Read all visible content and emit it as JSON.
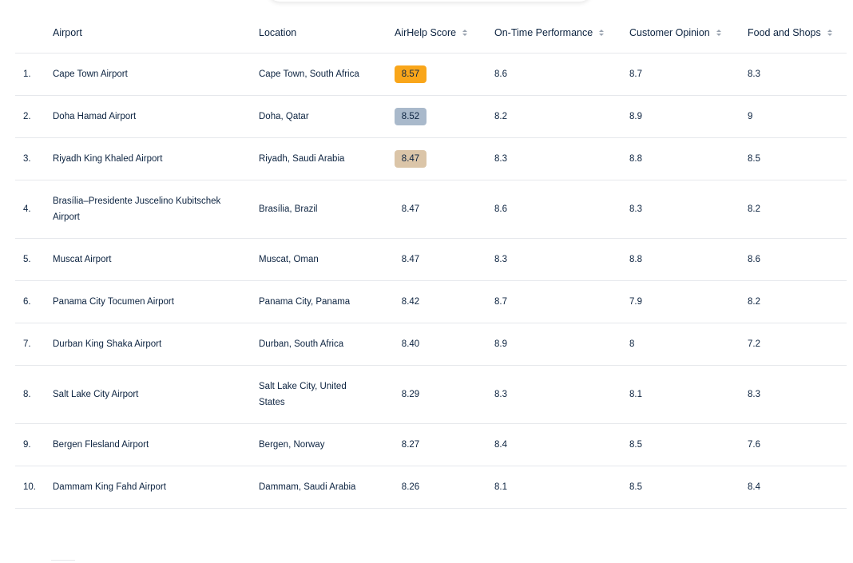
{
  "headers": {
    "airport": "Airport",
    "location": "Location",
    "score": "AirHelp Score",
    "on_time": "On-Time Performance",
    "opinion": "Customer Opinion",
    "food": "Food and Shops"
  },
  "rows": [
    {
      "rank": "1.",
      "airport": "Cape Town Airport",
      "location": "Cape Town, South Africa",
      "score": "8.57",
      "on_time": "8.6",
      "opinion": "8.7",
      "food": "8.3"
    },
    {
      "rank": "2.",
      "airport": "Doha Hamad Airport",
      "location": "Doha, Qatar",
      "score": "8.52",
      "on_time": "8.2",
      "opinion": "8.9",
      "food": "9"
    },
    {
      "rank": "3.",
      "airport": "Riyadh King Khaled Airport",
      "location": "Riyadh, Saudi Arabia",
      "score": "8.47",
      "on_time": "8.3",
      "opinion": "8.8",
      "food": "8.5"
    },
    {
      "rank": "4.",
      "airport": "Brasília–Presidente Juscelino Kubitschek Airport",
      "location": "Brasília, Brazil",
      "score": "8.47",
      "on_time": "8.6",
      "opinion": "8.3",
      "food": "8.2"
    },
    {
      "rank": "5.",
      "airport": "Muscat Airport",
      "location": "Muscat, Oman",
      "score": "8.47",
      "on_time": "8.3",
      "opinion": "8.8",
      "food": "8.6"
    },
    {
      "rank": "6.",
      "airport": "Panama City Tocumen Airport",
      "location": "Panama City, Panama",
      "score": "8.42",
      "on_time": "8.7",
      "opinion": "7.9",
      "food": "8.2"
    },
    {
      "rank": "7.",
      "airport": "Durban King Shaka Airport",
      "location": "Durban, South Africa",
      "score": "8.40",
      "on_time": "8.9",
      "opinion": "8",
      "food": "7.2"
    },
    {
      "rank": "8.",
      "airport": "Salt Lake City Airport",
      "location": "Salt Lake City, United States",
      "score": "8.29",
      "on_time": "8.3",
      "opinion": "8.1",
      "food": "8.3"
    },
    {
      "rank": "9.",
      "airport": "Bergen Flesland Airport",
      "location": "Bergen, Norway",
      "score": "8.27",
      "on_time": "8.4",
      "opinion": "8.5",
      "food": "7.6"
    },
    {
      "rank": "10.",
      "airport": "Dammam King Fahd Airport",
      "location": "Dammam, Saudi Arabia",
      "score": "8.26",
      "on_time": "8.1",
      "opinion": "8.5",
      "food": "8.4"
    }
  ],
  "colors": {
    "text": "#0c2340",
    "gold": "#f9a61a",
    "silver": "#a9b9cb",
    "bronze": "#dbc5a8",
    "divider": "#e6e8ec"
  }
}
